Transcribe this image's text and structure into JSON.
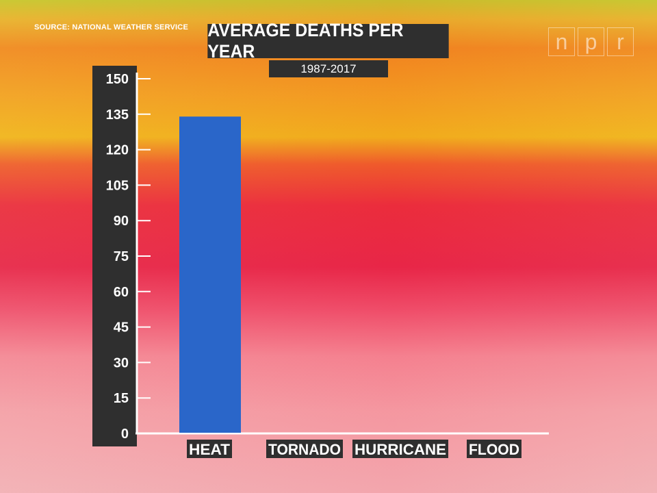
{
  "source": "SOURCE: NATIONAL WEATHER SERVICE",
  "logo": [
    "n",
    "p",
    "r"
  ],
  "chart_data": {
    "type": "bar",
    "title": "AVERAGE DEATHS PER YEAR",
    "subtitle": "1987-2017",
    "categories": [
      "HEAT",
      "TORNADO",
      "HURRICANE",
      "FLOOD"
    ],
    "series": [
      {
        "values": [
          134,
          null,
          null,
          null
        ]
      }
    ],
    "yticks": [
      0,
      15,
      30,
      45,
      60,
      75,
      90,
      105,
      120,
      135,
      150
    ],
    "ylim": [
      0,
      150
    ],
    "grid": false,
    "colors": {
      "bar": "#2a66c9",
      "axis_panel": "#2f2f2f",
      "axis": "#ffffff",
      "background_top": "#f08a1e",
      "background_mid": "#e72848",
      "background_bottom": "#f4a0a6"
    }
  }
}
